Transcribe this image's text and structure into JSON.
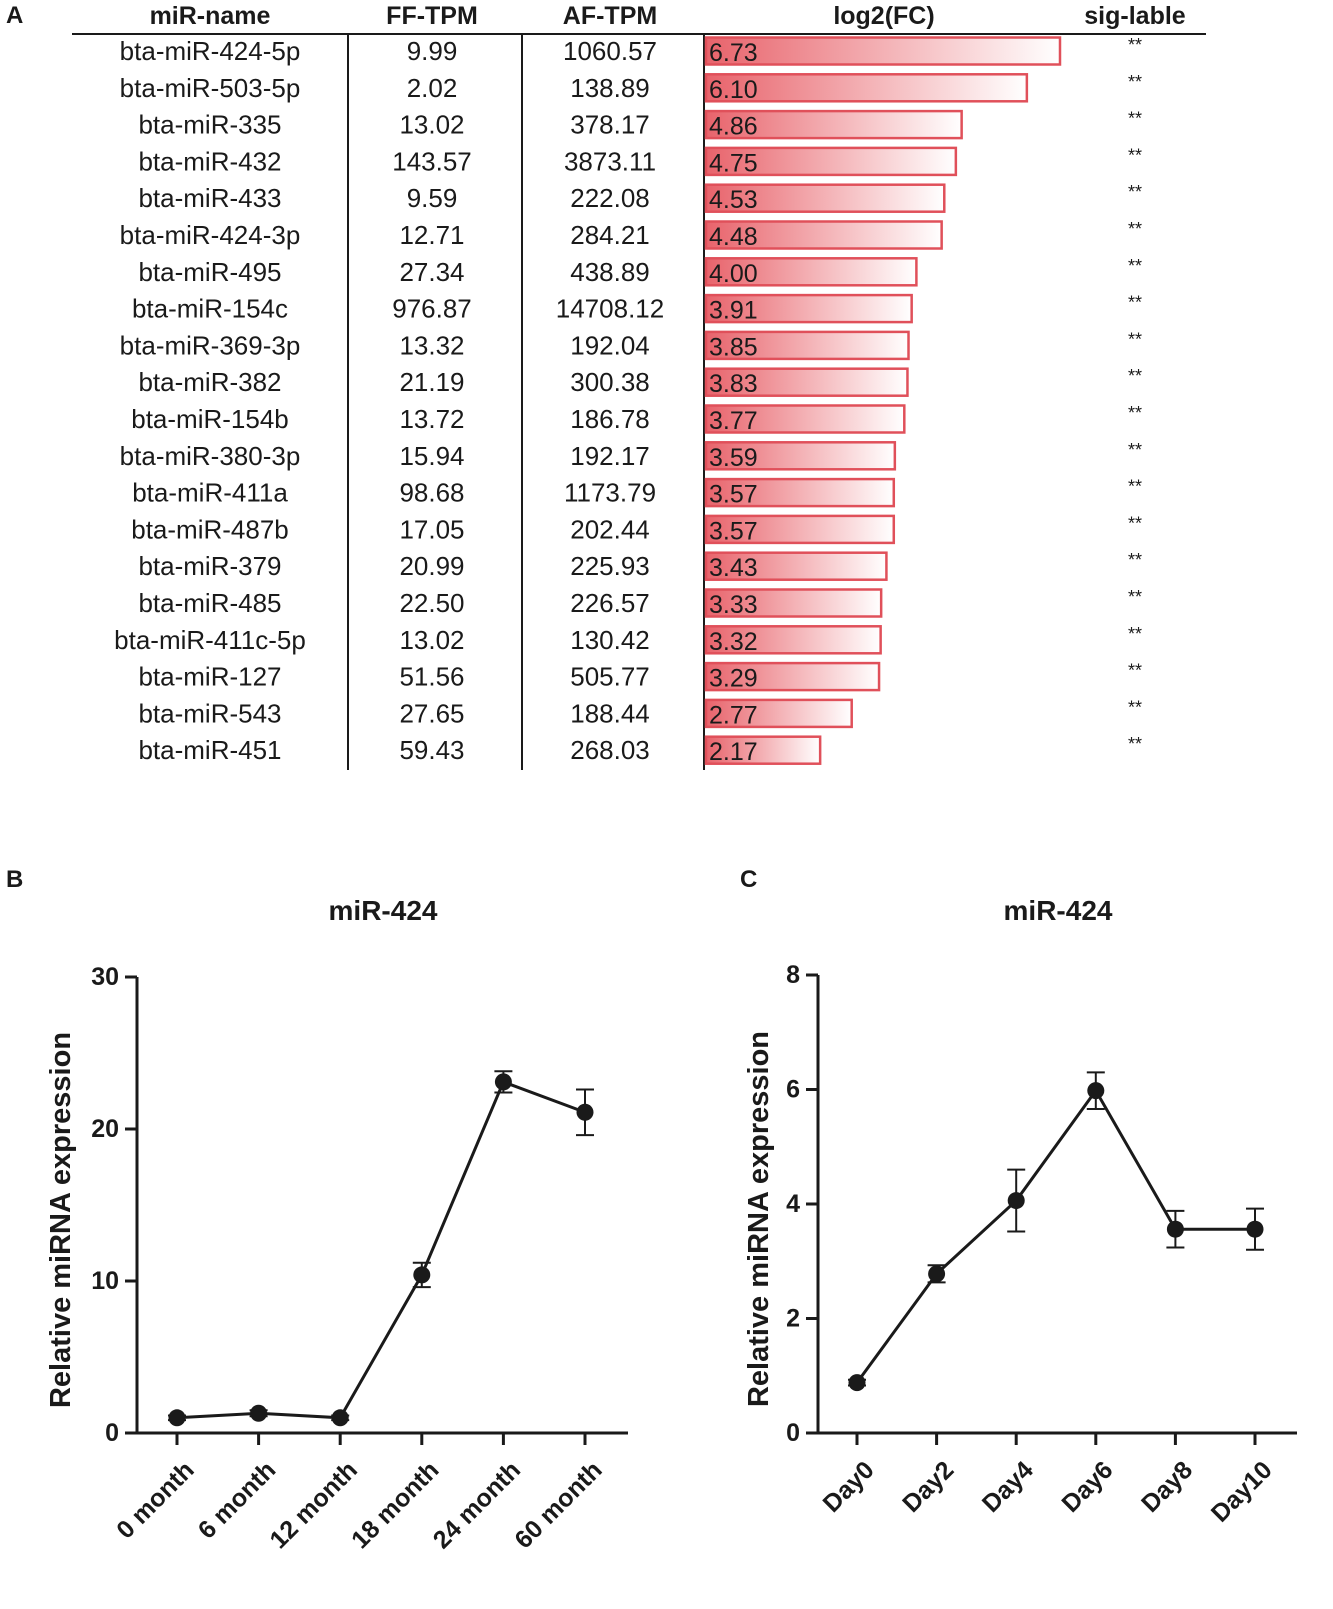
{
  "panel_labels": {
    "a": "A",
    "b": "B",
    "c": "C"
  },
  "colors": {
    "bar_stroke": "#e0505a",
    "bar_fill_start": "#e8636b",
    "bar_fill_end": "#ffffff",
    "ink": "#1a1a1a"
  },
  "chart_data": [
    {
      "type": "table",
      "columns": [
        "miR-name",
        "FF-TPM",
        "AF-TPM",
        "log2(FC)",
        "sig-lable"
      ],
      "rows": [
        {
          "name": "bta-miR-424-5p",
          "ff": "9.99",
          "af": "1060.57",
          "fc": 6.73,
          "fc_label": "6.73",
          "sig": "**"
        },
        {
          "name": "bta-miR-503-5p",
          "ff": "2.02",
          "af": "138.89",
          "fc": 6.1,
          "fc_label": "6.10",
          "sig": "**"
        },
        {
          "name": "bta-miR-335",
          "ff": "13.02",
          "af": "378.17",
          "fc": 4.86,
          "fc_label": "4.86",
          "sig": "**"
        },
        {
          "name": "bta-miR-432",
          "ff": "143.57",
          "af": "3873.11",
          "fc": 4.75,
          "fc_label": "4.75",
          "sig": "**"
        },
        {
          "name": "bta-miR-433",
          "ff": "9.59",
          "af": "222.08",
          "fc": 4.53,
          "fc_label": "4.53",
          "sig": "**"
        },
        {
          "name": "bta-miR-424-3p",
          "ff": "12.71",
          "af": "284.21",
          "fc": 4.48,
          "fc_label": "4.48",
          "sig": "**"
        },
        {
          "name": "bta-miR-495",
          "ff": "27.34",
          "af": "438.89",
          "fc": 4.0,
          "fc_label": "4.00",
          "sig": "**"
        },
        {
          "name": "bta-miR-154c",
          "ff": "976.87",
          "af": "14708.12",
          "fc": 3.91,
          "fc_label": "3.91",
          "sig": "**"
        },
        {
          "name": "bta-miR-369-3p",
          "ff": "13.32",
          "af": "192.04",
          "fc": 3.85,
          "fc_label": "3.85",
          "sig": "**"
        },
        {
          "name": "bta-miR-382",
          "ff": "21.19",
          "af": "300.38",
          "fc": 3.83,
          "fc_label": "3.83",
          "sig": "**"
        },
        {
          "name": "bta-miR-154b",
          "ff": "13.72",
          "af": "186.78",
          "fc": 3.77,
          "fc_label": "3.77",
          "sig": "**"
        },
        {
          "name": "bta-miR-380-3p",
          "ff": "15.94",
          "af": "192.17",
          "fc": 3.59,
          "fc_label": "3.59",
          "sig": "**"
        },
        {
          "name": "bta-miR-411a",
          "ff": "98.68",
          "af": "1173.79",
          "fc": 3.57,
          "fc_label": "3.57",
          "sig": "**"
        },
        {
          "name": "bta-miR-487b",
          "ff": "17.05",
          "af": "202.44",
          "fc": 3.57,
          "fc_label": "3.57",
          "sig": "**"
        },
        {
          "name": "bta-miR-379",
          "ff": "20.99",
          "af": "225.93",
          "fc": 3.43,
          "fc_label": "3.43",
          "sig": "**"
        },
        {
          "name": "bta-miR-485",
          "ff": "22.50",
          "af": "226.57",
          "fc": 3.33,
          "fc_label": "3.33",
          "sig": "**"
        },
        {
          "name": "bta-miR-411c-5p",
          "ff": "13.02",
          "af": "130.42",
          "fc": 3.32,
          "fc_label": "3.32",
          "sig": "**"
        },
        {
          "name": "bta-miR-127",
          "ff": "51.56",
          "af": "505.77",
          "fc": 3.29,
          "fc_label": "3.29",
          "sig": "**"
        },
        {
          "name": "bta-miR-543",
          "ff": "27.65",
          "af": "188.44",
          "fc": 2.77,
          "fc_label": "2.77",
          "sig": "**"
        },
        {
          "name": "bta-miR-451",
          "ff": "59.43",
          "af": "268.03",
          "fc": 2.17,
          "fc_label": "2.17",
          "sig": "**"
        }
      ]
    },
    {
      "type": "line",
      "title": "miR-424",
      "ylabel": "Relative  miRNA expression",
      "xlabel": "",
      "categories": [
        "0 month",
        "6 month",
        "12 month",
        "18 month",
        "24 month",
        "60 month"
      ],
      "values": [
        1.0,
        1.3,
        1.0,
        10.4,
        23.1,
        21.1
      ],
      "errors": [
        0.15,
        0.2,
        0.15,
        0.8,
        0.7,
        1.5
      ],
      "ylim": [
        0,
        30
      ],
      "yticks": [
        0,
        10,
        20,
        30
      ],
      "grid": false
    },
    {
      "type": "line",
      "title": "miR-424",
      "ylabel": "Relative  miRNA expression",
      "xlabel": "",
      "categories": [
        "Day0",
        "Day2",
        "Day4",
        "Day6",
        "Day8",
        "Day10"
      ],
      "values": [
        0.88,
        2.78,
        4.06,
        5.98,
        3.56,
        3.56
      ],
      "errors": [
        0.05,
        0.15,
        0.54,
        0.32,
        0.32,
        0.36
      ],
      "ylim": [
        0,
        8
      ],
      "yticks": [
        0,
        2,
        4,
        6,
        8
      ],
      "grid": false
    }
  ]
}
